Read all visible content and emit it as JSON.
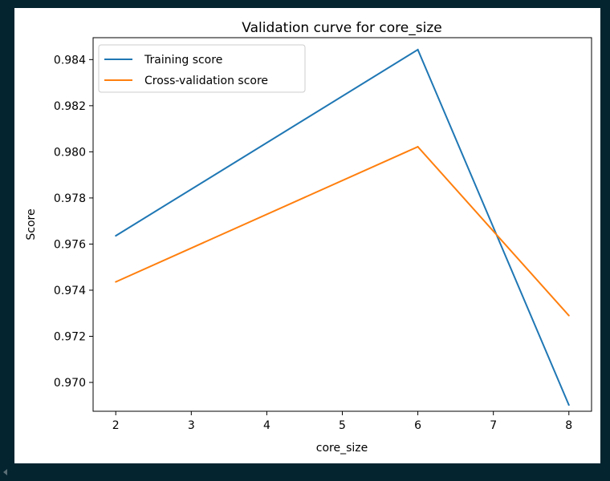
{
  "chart_data": {
    "type": "line",
    "title": "Validation curve for core_size",
    "xlabel": "core_size",
    "ylabel": "Score",
    "x": [
      2,
      6,
      8
    ],
    "xlim": [
      1.7,
      8.3
    ],
    "ylim": [
      0.96875,
      0.98495
    ],
    "xticks": [
      2,
      3,
      4,
      5,
      6,
      7,
      8
    ],
    "yticks": [
      0.97,
      0.972,
      0.974,
      0.976,
      0.978,
      0.98,
      0.982,
      0.984
    ],
    "ytick_labels": [
      "0.970",
      "0.972",
      "0.974",
      "0.976",
      "0.978",
      "0.980",
      "0.982",
      "0.984"
    ],
    "grid": false,
    "legend_position": "top-left",
    "series": [
      {
        "name": "Training score",
        "color": "#1f77b4",
        "values": [
          0.97636,
          0.98443,
          0.96902
        ]
      },
      {
        "name": "Cross-validation score",
        "color": "#ff7f0e",
        "values": [
          0.97436,
          0.98022,
          0.9729
        ]
      }
    ]
  }
}
